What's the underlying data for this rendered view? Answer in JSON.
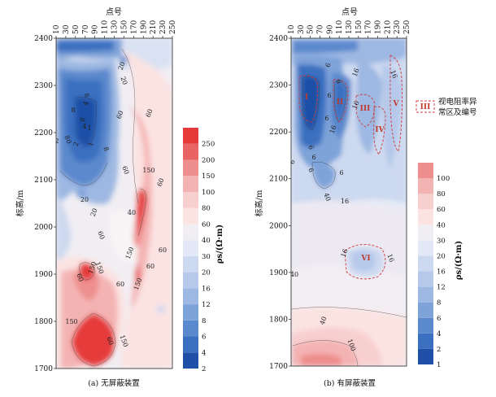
{
  "chart_data": [
    {
      "type": "heatmap",
      "panel": "a",
      "caption": "(a) 无屏蔽装置",
      "xlabel": "点号",
      "ylabel": "标高/m",
      "xticks": [
        "10",
        "30",
        "50",
        "70",
        "90",
        "110",
        "130",
        "150",
        "170",
        "190",
        "210",
        "230",
        "250"
      ],
      "xlim": [
        10,
        250
      ],
      "yticks": [
        "2400",
        "2300",
        "2200",
        "2100",
        "2000",
        "1900",
        "1800",
        "1700"
      ],
      "ylim": [
        1700,
        2400
      ],
      "colorbar": {
        "unit_label": "ρs/(Ω·m)",
        "levels": [
          "2",
          "4",
          "6",
          "8",
          "12",
          "16",
          "20",
          "30",
          "40",
          "60",
          "80",
          "100",
          "150",
          "200",
          "250"
        ],
        "colors": [
          "#1f4fa6",
          "#3b6fc0",
          "#5b89cd",
          "#7ea3d9",
          "#9db8e2",
          "#b6c9ea",
          "#cdd9f0",
          "#e2e8f6",
          "#f1eef3",
          "#fbe3e2",
          "#f8cfcf",
          "#f4b3b3",
          "#ee8e8e",
          "#e96565",
          "#e53a3a"
        ]
      },
      "contour_labels": [
        "20",
        "8",
        "8",
        "8",
        "8",
        "1",
        "2",
        "0",
        "2",
        "1",
        "8",
        "20",
        "60",
        "20",
        "150",
        "60",
        "60",
        "40",
        "20",
        "60",
        "60",
        "150",
        "60",
        "60",
        "150",
        "60",
        "150",
        "150",
        "150",
        "4",
        "4",
        "150",
        "60",
        "60"
      ]
    },
    {
      "type": "heatmap",
      "panel": "b",
      "caption": "(b) 有屏蔽装置",
      "xlabel": "点号",
      "ylabel": "标高/m",
      "xticks": [
        "10",
        "30",
        "50",
        "70",
        "90",
        "110",
        "130",
        "150",
        "170",
        "190",
        "210",
        "230",
        "250"
      ],
      "xlim": [
        10,
        250
      ],
      "yticks": [
        "2400",
        "2300",
        "2200",
        "2100",
        "2000",
        "1900",
        "1800",
        "1700"
      ],
      "ylim": [
        1700,
        2400
      ],
      "colorbar": {
        "unit_label": "ρs/(Ω·m)",
        "levels": [
          "1",
          "2",
          "4",
          "6",
          "8",
          "12",
          "16",
          "20",
          "30",
          "40",
          "60",
          "80",
          "100"
        ],
        "colors": [
          "#1f4fa6",
          "#3b6fc0",
          "#5b89cd",
          "#7ea3d9",
          "#9db8e2",
          "#b6c9ea",
          "#cdd9f0",
          "#e2e8f6",
          "#f1eef3",
          "#fbe3e2",
          "#f8cfcf",
          "#f4b3b3",
          "#ee8e8e"
        ]
      },
      "contour_labels": [
        "6",
        "6",
        "6",
        "16",
        "16",
        "6",
        "16",
        "6",
        "6",
        "6",
        "6",
        "6",
        "16",
        "40",
        "16",
        "16",
        "16",
        "40",
        "40",
        "100"
      ],
      "anomaly_zones": [
        "I",
        "II",
        "III",
        "IV",
        "V",
        "VI"
      ],
      "legend": {
        "swatch_label": "III",
        "text_line1": "视电阻率异",
        "text_line2": "常区及编号"
      }
    }
  ]
}
